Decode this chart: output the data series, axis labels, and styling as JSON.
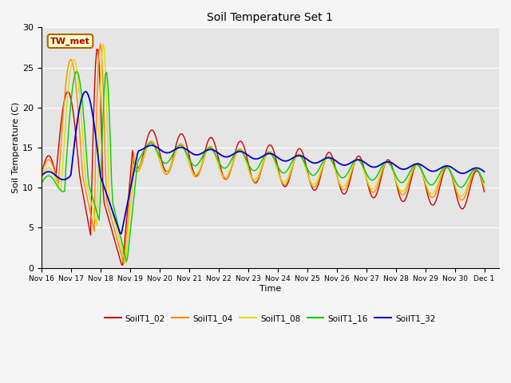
{
  "title": "Soil Temperature Set 1",
  "xlabel": "Time",
  "ylabel": "Soil Temperature (C)",
  "ylim": [
    0,
    30
  ],
  "xlim": [
    0,
    15.5
  ],
  "plot_bg": "#e5e5e5",
  "fig_bg": "#f5f5f5",
  "series_colors": {
    "SoilT1_02": "#cc0000",
    "SoilT1_04": "#ff8800",
    "SoilT1_08": "#dddd00",
    "SoilT1_16": "#00cc00",
    "SoilT1_32": "#0000cc"
  },
  "annotation_text": "TW_met",
  "annotation_color": "#aa0000",
  "annotation_bg": "#ffffcc",
  "annotation_border": "#aa6600",
  "tick_labels": [
    "Nov 16",
    "Nov 17",
    "Nov 18",
    "Nov 19",
    "Nov 20",
    "Nov 21",
    "Nov 22",
    "Nov 23",
    "Nov 24",
    "Nov 25",
    "Nov 26",
    "Nov 27",
    "Nov 28",
    "Nov 29",
    "Nov 30",
    "Dec 1"
  ],
  "yticks": [
    0,
    5,
    10,
    15,
    20,
    25,
    30
  ]
}
